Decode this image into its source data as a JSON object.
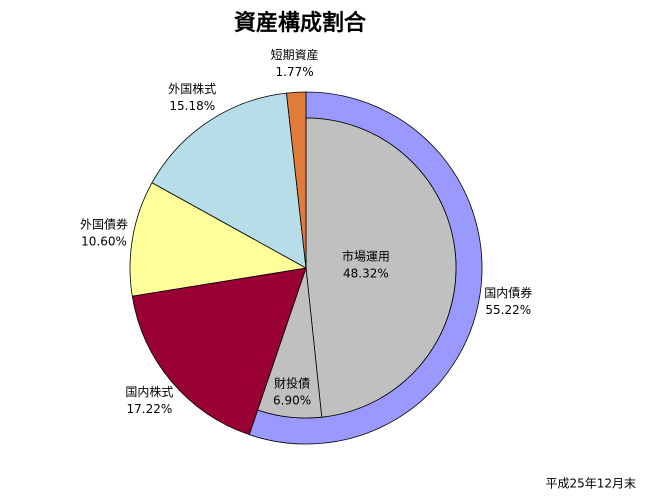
{
  "chart_data": {
    "type": "pie",
    "title": "資産構成割合",
    "note": "平成25年12月末",
    "categories": [
      "国内債券",
      "国内株式",
      "外国債券",
      "外国株式",
      "短期資産"
    ],
    "values": [
      55.22,
      17.22,
      10.6,
      15.18,
      1.77
    ],
    "value_labels": [
      "55.22%",
      "17.22%",
      "10.60%",
      "15.18%",
      "1.77%"
    ],
    "colors": [
      "#9999ff",
      "#990033",
      "#ffff99",
      "#b7dde8",
      "#e07b39"
    ],
    "inner": {
      "categories": [
        "市場運用",
        "財投債"
      ],
      "values": [
        48.32,
        6.9
      ],
      "value_labels": [
        "48.32%",
        "6.90%"
      ],
      "color": "#c0c0c0"
    }
  }
}
